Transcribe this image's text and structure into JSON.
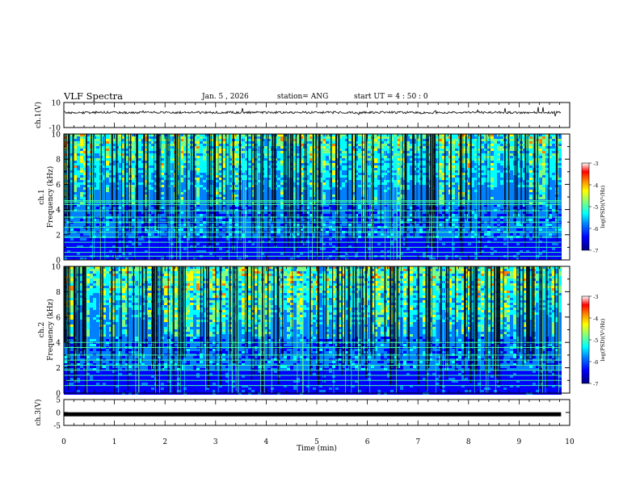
{
  "header": {
    "title": "VLF Spectra",
    "date": "Jan. 5 , 2026",
    "station": "station= ANG",
    "start": "start  UT =  4 : 50 : 0"
  },
  "chart_data": [
    {
      "type": "line",
      "name": "ch1-waveform",
      "ylabel": "ch.1(V)",
      "ylim": [
        -10,
        10
      ],
      "yticks": [
        "10",
        "-10"
      ],
      "xlim": [
        0,
        10
      ],
      "trace_level": 2,
      "data_end_min": 9.83
    },
    {
      "type": "heatmap",
      "name": "ch1-spectrogram",
      "ylabel": "ch.1\nFrequency (kHz)",
      "ylim": [
        0,
        10
      ],
      "yticks": [
        "0",
        "2",
        "4",
        "6",
        "8",
        "10"
      ],
      "xlim": [
        0,
        10
      ],
      "colorbar": {
        "label": "log(PSD)(V²/Hz)",
        "ticks": [
          "-3",
          "-4",
          "-5",
          "-6",
          "-7"
        ],
        "range": [
          -7,
          -3
        ]
      },
      "persistent_lines_khz": [
        0.3,
        0.6,
        1.0,
        1.4,
        1.8,
        2.2,
        2.6,
        3.0,
        3.4,
        3.9,
        4.4,
        4.6,
        4.7
      ],
      "data_end_min": 9.83
    },
    {
      "type": "heatmap",
      "name": "ch2-spectrogram",
      "ylabel": "ch.2\nFrequency (kHz)",
      "ylim": [
        0,
        10
      ],
      "yticks": [
        "0",
        "2",
        "4",
        "6",
        "8",
        "10"
      ],
      "xlim": [
        0,
        10
      ],
      "colorbar": {
        "label": "log(PSD)(V²/Hz)",
        "ticks": [
          "-3",
          "-4",
          "-5",
          "-6",
          "-7"
        ],
        "range": [
          -7,
          -3
        ]
      },
      "persistent_lines_khz": [
        0.6,
        1.0,
        1.4,
        1.8,
        2.2,
        2.6,
        3.0,
        3.6,
        4.0
      ],
      "data_end_min": 9.83
    },
    {
      "type": "line",
      "name": "ch3-waveform",
      "ylabel": "ch.3(V)",
      "ylim": [
        -5,
        5
      ],
      "yticks": [
        "5",
        "0",
        "-5"
      ],
      "xlim": [
        0,
        10
      ],
      "trace_level": -0.7,
      "data_end_min": 9.83
    }
  ],
  "xaxis": {
    "label": "Time (min)",
    "ticks": [
      "0",
      "1",
      "2",
      "3",
      "4",
      "5",
      "6",
      "7",
      "8",
      "9",
      "10"
    ]
  },
  "colormap": [
    "#000080",
    "#0000ff",
    "#0080ff",
    "#00ffff",
    "#80ff80",
    "#ffff00",
    "#ff8000",
    "#ff0000",
    "#ffffff"
  ]
}
